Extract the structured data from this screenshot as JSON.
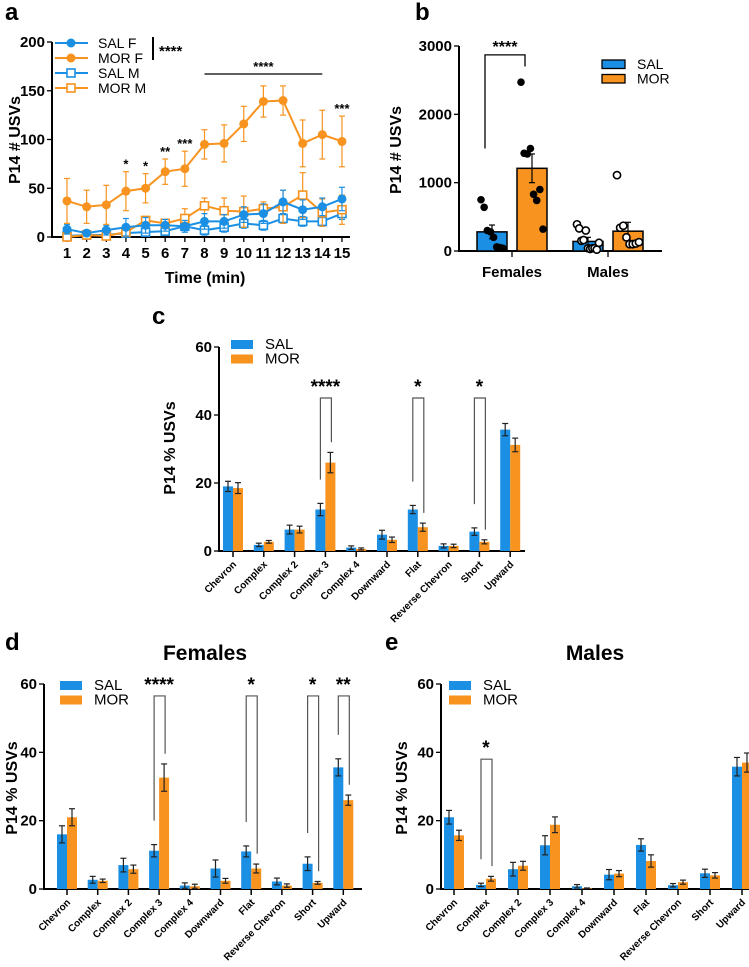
{
  "colors": {
    "SAL": "#1a8fe3",
    "MOR": "#f7931e",
    "axis": "#000000"
  },
  "chart_data": [
    {
      "panel": "a",
      "type": "line",
      "xlabel": "Time (min)",
      "ylabel": "P14 # USVs",
      "x": [
        1,
        2,
        3,
        4,
        5,
        6,
        7,
        8,
        9,
        10,
        11,
        12,
        13,
        14,
        15
      ],
      "ylim": [
        0,
        200
      ],
      "yticks": [
        0,
        50,
        100,
        150,
        200
      ],
      "legend_position": "top-left",
      "legend_stat": "****",
      "series": [
        {
          "name": "SAL F",
          "color": "#1a8fe3",
          "marker": "filled-circle",
          "values": [
            8,
            4,
            7,
            10,
            12,
            12,
            11,
            16,
            16,
            23,
            24,
            36,
            28,
            31,
            39
          ],
          "errors": [
            5,
            3,
            5,
            9,
            8,
            6,
            6,
            8,
            7,
            8,
            10,
            12,
            10,
            9,
            12
          ]
        },
        {
          "name": "MOR F",
          "color": "#f7931e",
          "marker": "filled-circle",
          "values": [
            37,
            31,
            33,
            47,
            50,
            67,
            70,
            95,
            96,
            116,
            139,
            140,
            96,
            105,
            98
          ],
          "errors": [
            23,
            17,
            20,
            20,
            15,
            13,
            18,
            15,
            19,
            18,
            16,
            15,
            24,
            25,
            26
          ]
        },
        {
          "name": "SAL M",
          "color": "#1a8fe3",
          "marker": "open-square",
          "values": [
            1,
            2,
            2,
            4,
            5,
            6,
            11,
            7,
            10,
            14,
            12,
            19,
            16,
            16,
            24
          ],
          "errors": [
            2,
            2,
            3,
            4,
            4,
            4,
            6,
            5,
            5,
            5,
            5,
            5,
            5,
            5,
            6
          ]
        },
        {
          "name": "MOR M",
          "color": "#f7931e",
          "marker": "open-square",
          "values": [
            0,
            2,
            1,
            5,
            17,
            14,
            19,
            32,
            27,
            26,
            29,
            31,
            43,
            25,
            28
          ],
          "errors": [
            3,
            3,
            3,
            4,
            4,
            4,
            10,
            8,
            13,
            16,
            7,
            17,
            23,
            14,
            15
          ]
        }
      ],
      "annotations": [
        {
          "x": 4,
          "label": "*"
        },
        {
          "x": 5,
          "label": "*"
        },
        {
          "x": 6,
          "label": "**"
        },
        {
          "x": 7,
          "label": "***"
        },
        {
          "x": 15,
          "label": "***"
        }
      ],
      "span_annotation": {
        "from": 8,
        "to": 14,
        "label": "****"
      }
    },
    {
      "panel": "b",
      "type": "bar",
      "ylabel": "P14 # USVs",
      "categories": [
        "Females",
        "Males"
      ],
      "ylim": [
        0,
        3000
      ],
      "yticks": [
        0,
        1000,
        2000,
        3000
      ],
      "legend_position": "top-right",
      "series": [
        {
          "name": "SAL",
          "color": "#1a8fe3",
          "values": [
            280,
            140
          ],
          "errors": [
            100,
            60
          ],
          "points": [
            [
              750,
              640,
              300,
              280,
              200,
              60,
              50,
              40
            ],
            [
              390,
              330,
              150,
              160,
              300,
              40,
              30,
              40,
              40,
              20,
              120
            ]
          ]
        },
        {
          "name": "MOR",
          "color": "#f7931e",
          "values": [
            1210,
            290
          ],
          "errors": [
            210,
            130
          ],
          "points": [
            [
              2470,
              1430,
              1420,
              1500,
              830,
              740,
              900,
              320
            ],
            [
              1110,
              340,
              370,
              200,
              100,
              100,
              110,
              130
            ]
          ]
        }
      ],
      "comparisons": [
        {
          "category": "Females",
          "label": "****"
        }
      ]
    },
    {
      "panel": "c",
      "type": "bar",
      "title": "",
      "ylabel": "P14 % USVs",
      "categories": [
        "Chevron",
        "Complex",
        "Complex 2",
        "Complex 3",
        "Complex 4",
        "Downward",
        "Flat",
        "Reverse Chevron",
        "Short",
        "Upward"
      ],
      "ylim": [
        0,
        60
      ],
      "yticks": [
        0,
        20,
        40,
        60
      ],
      "legend_position": "top-left",
      "series": [
        {
          "name": "SAL",
          "color": "#1a8fe3",
          "values": [
            19,
            1.8,
            6.3,
            12.2,
            1,
            4.8,
            12.2,
            1.5,
            5.7,
            35.7
          ],
          "errors": [
            1.5,
            0.5,
            1.3,
            1.8,
            0.5,
            1.3,
            1.2,
            0.6,
            1.1,
            1.8
          ]
        },
        {
          "name": "MOR",
          "color": "#f7931e",
          "values": [
            18.5,
            2.7,
            6.3,
            26,
            0.6,
            3.3,
            7,
            1.5,
            2.7,
            31.2
          ],
          "errors": [
            1.6,
            0.4,
            1,
            3,
            0.3,
            0.8,
            1.2,
            0.5,
            0.6,
            2
          ]
        }
      ],
      "comparisons": [
        {
          "category": "Complex 3",
          "label": "****"
        },
        {
          "category": "Flat",
          "label": "*"
        },
        {
          "category": "Short",
          "label": "*"
        }
      ]
    },
    {
      "panel": "d",
      "type": "bar",
      "title": "Females",
      "ylabel": "P14 % USVs",
      "categories": [
        "Chevron",
        "Complex",
        "Complex 2",
        "Complex 3",
        "Complex 4",
        "Downward",
        "Flat",
        "Reverse Chevron",
        "Short",
        "Upward"
      ],
      "ylim": [
        0,
        60
      ],
      "yticks": [
        0,
        20,
        40,
        60
      ],
      "legend_position": "top-left",
      "series": [
        {
          "name": "SAL",
          "color": "#1a8fe3",
          "values": [
            16,
            2.7,
            7,
            11.2,
            1,
            6,
            11,
            2.2,
            7.4,
            35.6
          ],
          "errors": [
            2.5,
            1,
            2,
            1.8,
            0.8,
            2.5,
            1.6,
            1,
            2,
            2.5
          ]
        },
        {
          "name": "MOR",
          "color": "#f7931e",
          "values": [
            21,
            2.4,
            5.8,
            32.6,
            0.8,
            2.4,
            6,
            1,
            1.8,
            26
          ],
          "errors": [
            2.5,
            0.5,
            1.2,
            4,
            0.6,
            0.7,
            1.3,
            0.5,
            0.4,
            1.5
          ]
        }
      ],
      "comparisons": [
        {
          "category": "Complex 3",
          "label": "****"
        },
        {
          "category": "Flat",
          "label": "*"
        },
        {
          "category": "Short",
          "label": "*"
        },
        {
          "category": "Upward",
          "label": "**"
        }
      ]
    },
    {
      "panel": "e",
      "type": "bar",
      "title": "Males",
      "ylabel": "P14 % USVs",
      "categories": [
        "Chevron",
        "Complex",
        "Complex 2",
        "Complex 3",
        "Complex 4",
        "Downward",
        "Flat",
        "Reverse Chevron",
        "Short",
        "Upward"
      ],
      "ylim": [
        0,
        60
      ],
      "yticks": [
        0,
        20,
        40,
        60
      ],
      "legend_position": "top-left",
      "series": [
        {
          "name": "SAL",
          "color": "#1a8fe3",
          "values": [
            21,
            1.2,
            5.8,
            12.8,
            0.8,
            4.2,
            12.9,
            1.1,
            4.6,
            35.8
          ],
          "errors": [
            2,
            0.5,
            2,
            2.8,
            0.5,
            1.5,
            1.8,
            0.5,
            1.2,
            2.7
          ]
        },
        {
          "name": "MOR",
          "color": "#f7931e",
          "values": [
            15.7,
            3,
            6.8,
            18.8,
            0.2,
            4.5,
            8.2,
            2,
            4,
            37
          ],
          "errors": [
            1.5,
            0.7,
            1.3,
            2.3,
            0.1,
            0.9,
            1.8,
            0.6,
            0.8,
            2.8
          ]
        }
      ],
      "comparisons": [
        {
          "category": "Complex",
          "label": "*"
        }
      ]
    }
  ]
}
